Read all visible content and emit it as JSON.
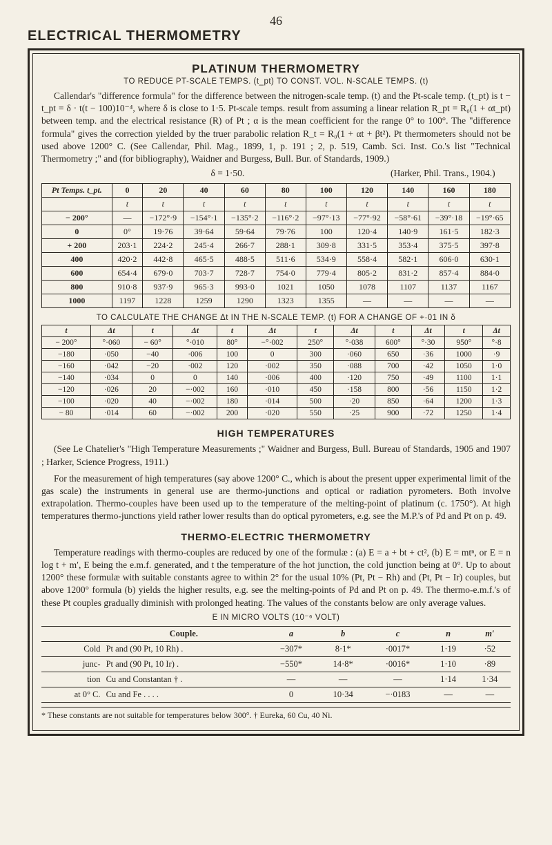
{
  "page_number": "46",
  "page_title": "ELECTRICAL THERMOMETRY",
  "sec1": {
    "title": "PLATINUM THERMOMETRY",
    "subtitle": "TO REDUCE PT-SCALE TEMPS. (t_pt) TO CONST. VOL. N-SCALE TEMPS. (t)",
    "para": "Callendar's \"difference formula\" for the difference between the nitrogen-scale temp. (t) and the Pt-scale temp. (t_pt) is t − t_pt = δ · t(t − 100)10⁻⁴, where δ is close to 1·5. Pt-scale temps. result from assuming a linear relation R_pt = R₀(1 + αt_pt) between temp. and the electrical resistance (R) of Pt ; α is the mean coefficient for the range 0° to 100°. The \"difference formula\" gives the correction yielded by the truer parabolic relation R_t = R₀(1 + αt + βt²). Pt thermometers should not be used above 1200° C. (See Callendar, Phil. Mag., 1899, 1, p. 191 ; 2, p. 519, Camb. Sci. Inst. Co.'s list \"Technical Thermometry ;\" and (for bibliography), Waidner and Burgess, Bull. Bur. of Standards, 1909.)",
    "delta_line_left": "δ = 1·50.",
    "delta_line_right": "(Harker, Phil. Trans., 1904.)"
  },
  "table1": {
    "row_header": "Pt Temps. t_pt.",
    "cols": [
      "0",
      "20",
      "40",
      "60",
      "80",
      "100",
      "120",
      "140",
      "160",
      "180"
    ],
    "unit_row": [
      "t",
      "t",
      "t",
      "t",
      "t",
      "t",
      "t",
      "t",
      "t",
      "t"
    ],
    "rows": [
      {
        "h": "− 200°",
        "c": [
          "—",
          "−172°·9",
          "−154°·1",
          "−135°·2",
          "−116°·2",
          "−97°·13",
          "−77°·92",
          "−58°·61",
          "−39°·18",
          "−19°·65"
        ]
      },
      {
        "h": "0",
        "c": [
          "0°",
          "19·76",
          "39·64",
          "59·64",
          "79·76",
          "100",
          "120·4",
          "140·9",
          "161·5",
          "182·3"
        ]
      },
      {
        "h": "+ 200",
        "c": [
          "203·1",
          "224·2",
          "245·4",
          "266·7",
          "288·1",
          "309·8",
          "331·5",
          "353·4",
          "375·5",
          "397·8"
        ]
      },
      {
        "h": "400",
        "c": [
          "420·2",
          "442·8",
          "465·5",
          "488·5",
          "511·6",
          "534·9",
          "558·4",
          "582·1",
          "606·0",
          "630·1"
        ]
      },
      {
        "h": "600",
        "c": [
          "654·4",
          "679·0",
          "703·7",
          "728·7",
          "754·0",
          "779·4",
          "805·2",
          "831·2",
          "857·4",
          "884·0"
        ]
      },
      {
        "h": "800",
        "c": [
          "910·8",
          "937·9",
          "965·3",
          "993·0",
          "1021",
          "1050",
          "1078",
          "1107",
          "1137",
          "1167"
        ]
      },
      {
        "h": "1000",
        "c": [
          "1197",
          "1228",
          "1259",
          "1290",
          "1323",
          "1355",
          "—",
          "—",
          "—",
          "—"
        ]
      }
    ]
  },
  "banner2": "TO CALCULATE THE CHANGE Δt IN THE N-SCALE TEMP. (t) FOR A CHANGE OF +·01 IN δ",
  "table2": {
    "headers": [
      "t",
      "Δt",
      "t",
      "Δt",
      "t",
      "Δt",
      "t",
      "Δt",
      "t",
      "Δt",
      "t",
      "Δt"
    ],
    "rows": [
      [
        "− 200°",
        "°·060",
        "− 60°",
        "°·010",
        "80°",
        "−°·002",
        "250°",
        "°·038",
        "600°",
        "°·30",
        "950°",
        "°·8"
      ],
      [
        "−180",
        "·050",
        "−40",
        "·006",
        "100",
        "0",
        "300",
        "·060",
        "650",
        "·36",
        "1000",
        "·9"
      ],
      [
        "−160",
        "·042",
        "−20",
        "·002",
        "120",
        "·002",
        "350",
        "·088",
        "700",
        "·42",
        "1050",
        "1·0"
      ],
      [
        "−140",
        "·034",
        "0",
        "0",
        "140",
        "·006",
        "400",
        "·120",
        "750",
        "·49",
        "1100",
        "1·1"
      ],
      [
        "−120",
        "·026",
        "20",
        "−·002",
        "160",
        "·010",
        "450",
        "·158",
        "800",
        "·56",
        "1150",
        "1·2"
      ],
      [
        "−100",
        "·020",
        "40",
        "−·002",
        "180",
        "·014",
        "500",
        "·20",
        "850",
        "·64",
        "1200",
        "1·3"
      ],
      [
        "− 80",
        "·014",
        "60",
        "−·002",
        "200",
        "·020",
        "550",
        "·25",
        "900",
        "·72",
        "1250",
        "1·4"
      ]
    ]
  },
  "high_temp": {
    "title": "HIGH TEMPERATURES",
    "para1": "(See Le Chatelier's \"High Temperature Measurements ;\" Waidner and Burgess, Bull. Bureau of Standards, 1905 and 1907 ; Harker, Science Progress, 1911.)",
    "para2": "For the measurement of high temperatures (say above 1200° C., which is about the present upper experimental limit of the gas scale) the instruments in general use are thermo-junctions and optical or radiation pyrometers. Both involve extrapolation. Thermo-couples have been used up to the temperature of the melting-point of platinum (c. 1750°). At high temperatures thermo-junctions yield rather lower results than do optical pyrometers, e.g. see the M.P.'s of Pd and Pt on p. 49."
  },
  "thermo": {
    "title": "THERMO-ELECTRIC THERMOMETRY",
    "para": "Temperature readings with thermo-couples are reduced by one of the formulæ : (a) E = a + bt + ct², (b) E = mtⁿ, or E = n log t + m′, E being the e.m.f. generated, and t the temperature of the hot junction, the cold junction being at 0°. Up to about 1200° these formulæ with suitable constants agree to within 2° for the usual 10% (Pt, Pt − Rh) and (Pt, Pt − Ir) couples, but above 1200° formula (b) yields the higher results, e.g. see the melting-points of Pd and Pt on p. 49. The thermo-e.m.f.'s of these Pt couples gradually diminish with prolonged heating. The values of the constants below are only average values.",
    "subtitle": "E IN MICRO VOLTS (10⁻⁶ VOLT)"
  },
  "table3": {
    "col_headers": [
      "",
      "Couple.",
      "a",
      "b",
      "c",
      "n",
      "m′"
    ],
    "rows": [
      [
        "Cold",
        "Pt and (90 Pt, 10 Rh) .",
        "−307*",
        "8·1*",
        "·0017*",
        "1·19",
        "·52"
      ],
      [
        "junc-",
        "Pt and (90 Pt, 10 Ir)  .",
        "−550*",
        "14·8*",
        "·0016*",
        "1·10",
        "·89"
      ],
      [
        "tion",
        "Cu and Constantan †  .",
        "—",
        "—",
        "—",
        "1·14",
        "1·34"
      ],
      [
        "at 0° C.",
        "Cu and Fe . . . .",
        "0",
        "10·34",
        "−·0183",
        "—",
        "—"
      ]
    ]
  },
  "footnote": "* These constants are not suitable for temperatures below 300°.      † Eureka, 60 Cu, 40 Ni."
}
